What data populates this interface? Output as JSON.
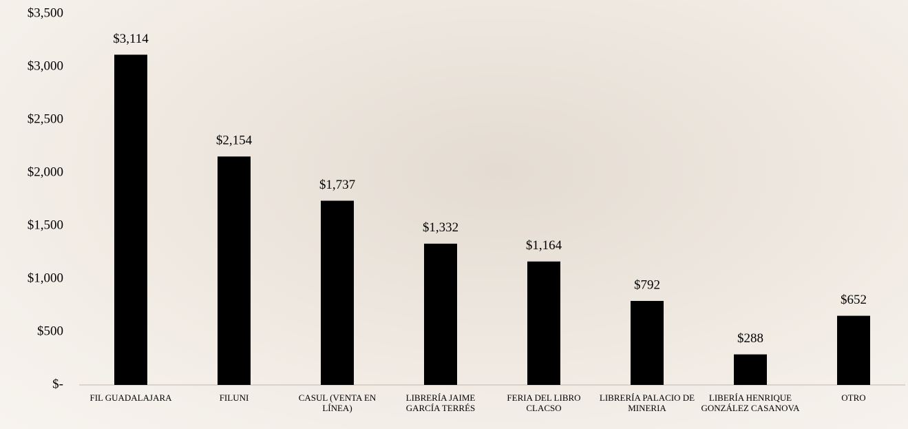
{
  "chart_data": {
    "type": "bar",
    "categories": [
      "FIL GUADALAJARA",
      "FILUNI",
      "CASUL (VENTA EN LÍNEA)",
      "LIBRERÍA JAIME GARCÍA TERRÉS",
      "FERIA DEL LIBRO CLACSO",
      "LIBRERÍA PALACIO DE MINERIA",
      "LIBERÍA HENRIQUE GONZÁLEZ CASANOVA",
      "OTRO"
    ],
    "values": [
      3114,
      2154,
      1737,
      1332,
      1164,
      792,
      288,
      652
    ],
    "value_labels": [
      "$3,114",
      "$2,154",
      "$1,737",
      "$1,332",
      "$1,164",
      "$792",
      "$288",
      "$652"
    ],
    "color": "#000000",
    "ylim": [
      0,
      3500
    ],
    "yticks": [
      {
        "value": 0,
        "label": "$-"
      },
      {
        "value": 500,
        "label": "$500"
      },
      {
        "value": 1000,
        "label": "$1,000"
      },
      {
        "value": 1500,
        "label": "$1,500"
      },
      {
        "value": 2000,
        "label": "$2,000"
      },
      {
        "value": 2500,
        "label": "$2,500"
      },
      {
        "value": 3000,
        "label": "$3,000"
      },
      {
        "value": 3500,
        "label": "$3,500"
      }
    ],
    "grid": false
  }
}
